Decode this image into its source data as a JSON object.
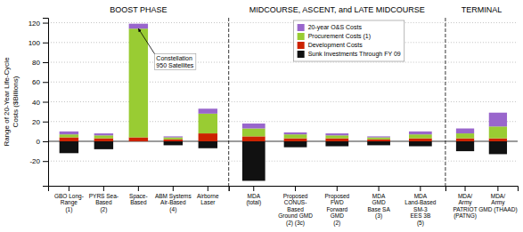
{
  "chart_data": [
    {
      "type": "bar",
      "title": "BOOST PHASE",
      "ylabel": "Range of 20-Year Life-Cycle\nCosts ($Billions)",
      "categories": [
        "GBO Long-\nRange\n(1)",
        "PYRS Sea-\nBased\n(2)",
        "Space-\nBased",
        "ABM Systems\nAir-Based\n(4)",
        "Airborne\nLaser"
      ],
      "series": [
        {
          "name": "20-year O&S Costs",
          "color": "#9966cc",
          "values": [
            3,
            2,
            5,
            1,
            5
          ]
        },
        {
          "name": "Procurement Costs (1)",
          "color": "#99cc33",
          "values": [
            3,
            3,
            110,
            2,
            20
          ]
        },
        {
          "name": "Development Costs",
          "color": "#cc2200",
          "values": [
            4,
            3,
            4,
            2,
            8
          ]
        },
        {
          "name": "Sunk Investments Through FY 09",
          "color": "#111111",
          "values": [
            -12,
            -8,
            0,
            -4,
            -7
          ]
        }
      ],
      "stacked": true,
      "ylim": [
        -45,
        125
      ],
      "yticks": [
        -20,
        0,
        20,
        40,
        60,
        80,
        100,
        120
      ],
      "grid": true,
      "annotation": {
        "text": "Constellation\n950 Satellites",
        "x": "Space-\nBased",
        "y": 114
      }
    },
    {
      "type": "bar",
      "title": "MIDCOURSE, ASCENT, and LATE MIDCOURSE",
      "categories": [
        "MDA\n(total)",
        "Proposed\nCONUS-\nBased\nGround GMD\n(2) (3c)",
        "Proposed\nFWD\nForward\nGMD\n(2)",
        "MDA\nGMD\nBase SA\n(3)",
        "MDA\nLand-Based\nSM-3\nEES 3B\n(5)"
      ],
      "series": [
        {
          "name": "20-year O&S Costs",
          "color": "#9966cc",
          "values": [
            5,
            2,
            2,
            1,
            3
          ]
        },
        {
          "name": "Procurement Costs (1)",
          "color": "#99cc33",
          "values": [
            8,
            4,
            3,
            2,
            4
          ]
        },
        {
          "name": "Development Costs",
          "color": "#cc2200",
          "values": [
            5,
            3,
            3,
            2,
            3
          ]
        },
        {
          "name": "Sunk Investments Through FY 09",
          "color": "#111111",
          "values": [
            -40,
            -6,
            -5,
            -4,
            -5
          ]
        }
      ],
      "stacked": true,
      "ylim": [
        -45,
        125
      ],
      "yticks": [
        -20,
        0,
        20,
        40,
        60,
        80,
        100,
        120
      ],
      "grid": true,
      "legend": "upper left",
      "tick_labels": "x"
    },
    {
      "type": "bar",
      "title": "TERMINAL",
      "categories": [
        "MDA/\nArmy\nPATRIOT\n(PATNG)",
        "MDA/\nArmy\nGMD (THAAD)"
      ],
      "series": [
        {
          "name": "20-year O&S Costs",
          "color": "#9966cc",
          "values": [
            5,
            14
          ]
        },
        {
          "name": "Procurement Costs (1)",
          "color": "#99cc33",
          "values": [
            5,
            12
          ]
        },
        {
          "name": "Development Costs",
          "color": "#cc2200",
          "values": [
            3,
            3
          ]
        },
        {
          "name": "Sunk Investments Through FY 09",
          "color": "#111111",
          "values": [
            -10,
            -13
          ]
        }
      ],
      "stacked": true,
      "ylim": [
        -45,
        125
      ],
      "yticks": [
        -20,
        0,
        20,
        40,
        60,
        80,
        100,
        120
      ],
      "grid": true,
      "tick_labels": "x"
    }
  ]
}
